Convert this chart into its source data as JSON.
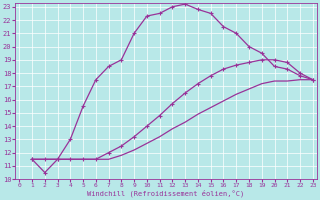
{
  "xlabel": "Windchill (Refroidissement éolien,°C)",
  "background_color": "#b8e8e8",
  "grid_color": "#ffffff",
  "line_color": "#993399",
  "xlim_min": 0,
  "xlim_max": 23,
  "ylim_min": 10,
  "ylim_max": 23,
  "xticks": [
    0,
    1,
    2,
    3,
    4,
    5,
    6,
    7,
    8,
    9,
    10,
    11,
    12,
    13,
    14,
    15,
    16,
    17,
    18,
    19,
    20,
    21,
    22,
    23
  ],
  "yticks": [
    10,
    11,
    12,
    13,
    14,
    15,
    16,
    17,
    18,
    19,
    20,
    21,
    22,
    23
  ],
  "line1_x": [
    1,
    2,
    3,
    4,
    5,
    6,
    7,
    8,
    9,
    10,
    11,
    12,
    13,
    14,
    15,
    16,
    17,
    18,
    19,
    20,
    21,
    22,
    23
  ],
  "line1_y": [
    11.5,
    10.5,
    11.5,
    13.0,
    15.5,
    17.5,
    18.5,
    19.0,
    21.0,
    22.3,
    22.5,
    23.0,
    23.2,
    22.8,
    22.5,
    21.5,
    21.0,
    20.0,
    19.5,
    18.5,
    18.3,
    17.8,
    17.5
  ],
  "line2_x": [
    1,
    2,
    3,
    4,
    5,
    6,
    7,
    8,
    9,
    10,
    11,
    12,
    13,
    14,
    15,
    16,
    17,
    18,
    19,
    20,
    21,
    22,
    23
  ],
  "line2_y": [
    11.5,
    11.5,
    11.5,
    11.5,
    11.5,
    11.5,
    12.0,
    12.5,
    13.2,
    14.0,
    14.8,
    15.7,
    16.5,
    17.2,
    17.8,
    18.3,
    18.6,
    18.8,
    19.0,
    19.0,
    18.8,
    18.0,
    17.5
  ],
  "line3_x": [
    1,
    2,
    3,
    4,
    5,
    6,
    7,
    8,
    9,
    10,
    11,
    12,
    13,
    14,
    15,
    16,
    17,
    18,
    19,
    20,
    21,
    22,
    23
  ],
  "line3_y": [
    11.5,
    11.5,
    11.5,
    11.5,
    11.5,
    11.5,
    11.5,
    11.8,
    12.2,
    12.7,
    13.2,
    13.8,
    14.3,
    14.9,
    15.4,
    15.9,
    16.4,
    16.8,
    17.2,
    17.4,
    17.4,
    17.5,
    17.5
  ]
}
